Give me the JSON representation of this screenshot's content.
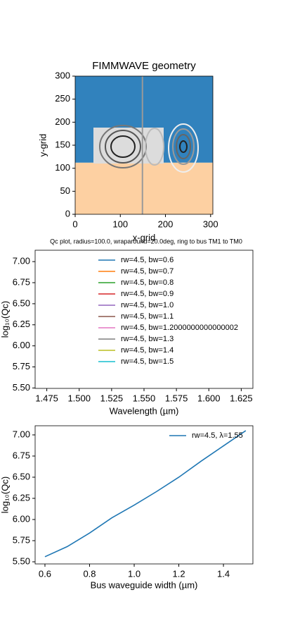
{
  "chart_data": [
    {
      "type": "image",
      "title": "FIMMWAVE geometry",
      "xlabel": "x-grid",
      "ylabel": "y-grid",
      "xlim": [
        0,
        305
      ],
      "ylim": [
        0,
        300
      ],
      "xticks": [
        0,
        100,
        200,
        300
      ],
      "yticks": [
        0,
        50,
        100,
        150,
        200,
        250,
        300
      ],
      "interface": 112,
      "vline": 149,
      "upper_color": "#3182bd",
      "lower_color": "#fdd0a2",
      "vline_color": "#999999"
    },
    {
      "type": "line",
      "title": "Qc plot, radius=100.0, wraparound=20.0deg, ring to bus TM1 to TM0",
      "xlabel": "Wavelength (µm)",
      "ylabel": "log₁₀(Qc)",
      "xlim": [
        1.466,
        1.634
      ],
      "ylim": [
        5.495,
        7.135
      ],
      "xticks": [
        1.475,
        {
          "value": 1.5,
          "label": "1.500"
        },
        1.525,
        {
          "value": 1.55,
          "label": "1.550"
        },
        1.575,
        {
          "value": 1.6,
          "label": "1.600"
        },
        1.625
      ],
      "yticks": [
        {
          "value": 5.5,
          "label": "5.50"
        },
        5.75,
        {
          "value": 6,
          "label": "6.00"
        },
        6.25,
        {
          "value": 6.5,
          "label": "6.50"
        },
        6.75,
        {
          "value": 7,
          "label": "7.00"
        }
      ],
      "legend": "upper center",
      "x": [],
      "series": [
        {
          "name": "rw=4.5, bw=0.6",
          "color": "#1f77b4",
          "values": []
        },
        {
          "name": "rw=4.5, bw=0.7",
          "color": "#ff7f0e",
          "values": []
        },
        {
          "name": "rw=4.5, bw=0.8",
          "color": "#2ca02c",
          "values": []
        },
        {
          "name": "rw=4.5, bw=0.9",
          "color": "#d62728",
          "values": []
        },
        {
          "name": "rw=4.5, bw=1.0",
          "color": "#9467bd",
          "values": []
        },
        {
          "name": "rw=4.5, bw=1.1",
          "color": "#8c564b",
          "values": []
        },
        {
          "name": "rw=4.5, bw=1.2000000000000002",
          "color": "#e377c2",
          "values": []
        },
        {
          "name": "rw=4.5, bw=1.3",
          "color": "#7f7f7f",
          "values": []
        },
        {
          "name": "rw=4.5, bw=1.4",
          "color": "#bcbd22",
          "values": []
        },
        {
          "name": "rw=4.5, bw=1.5",
          "color": "#17becf",
          "values": []
        }
      ]
    },
    {
      "type": "line",
      "xlabel": "Bus waveguide width (µm)",
      "ylabel": "log₁₀(Qc)",
      "xlim": [
        0.556,
        1.532
      ],
      "ylim": [
        5.475,
        7.108
      ],
      "xticks": [
        0.6,
        0.8,
        {
          "value": 1,
          "label": "1.0"
        },
        1.2,
        1.4
      ],
      "yticks": [
        {
          "value": 5.5,
          "label": "5.50"
        },
        5.75,
        {
          "value": 6,
          "label": "6.00"
        },
        6.25,
        {
          "value": 6.5,
          "label": "6.50"
        },
        6.75,
        {
          "value": 7,
          "label": "7.00"
        }
      ],
      "legend": "upper right",
      "x": [
        0.6,
        0.7,
        0.8,
        0.9,
        1.0,
        1.1,
        1.2,
        1.3,
        1.4,
        1.5
      ],
      "series": [
        {
          "name": "rw=4.5, λ=1.55",
          "color": "#1f77b4",
          "values": [
            5.56,
            5.68,
            5.84,
            6.02,
            6.17,
            6.33,
            6.5,
            6.69,
            6.87,
            7.05
          ]
        }
      ]
    }
  ]
}
